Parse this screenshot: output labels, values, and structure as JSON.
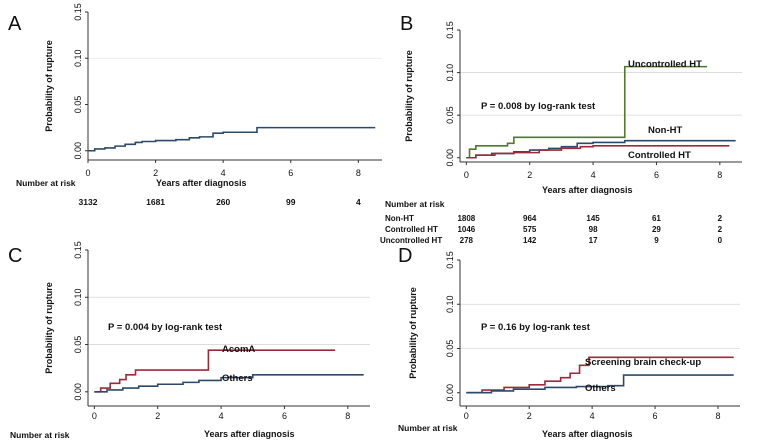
{
  "chart_data": [
    {
      "panel": "A",
      "type": "line",
      "xlabel": "Years after diagnosis",
      "ylabel": "Probability of rupture",
      "xlim": [
        0,
        8.7
      ],
      "ylim": [
        -0.01,
        0.15
      ],
      "xticks": [
        0,
        2,
        4,
        6,
        8
      ],
      "yticks": [
        "0.00",
        "0.05",
        "0.10",
        "0.15"
      ],
      "series": [
        {
          "color": "#2b4a6b",
          "x": [
            0,
            0.2,
            0.5,
            0.8,
            1.1,
            1.4,
            1.6,
            2.0,
            2.6,
            3.0,
            3.3,
            3.7,
            4.0,
            4.4,
            5.0,
            8.5
          ],
          "y": [
            0.0,
            0.002,
            0.003,
            0.005,
            0.007,
            0.009,
            0.01,
            0.011,
            0.012,
            0.014,
            0.015,
            0.019,
            0.02,
            0.02,
            0.025,
            0.025
          ]
        }
      ],
      "annotations": [],
      "risk_table": {
        "title": "Number at risk",
        "label_x": "Years after diagnosis",
        "rows": [
          {
            "label": "",
            "values": [
              "3132",
              "1681",
              "260",
              "99",
              "4"
            ]
          }
        ]
      }
    },
    {
      "panel": "B",
      "type": "line",
      "xlabel": "Years after diagnosis",
      "ylabel": "Probability of rupture",
      "xlim": [
        -0.2,
        8.7
      ],
      "ylim": [
        -0.005,
        0.15
      ],
      "xticks": [
        0,
        2,
        4,
        6,
        8
      ],
      "yticks": [
        "0.00",
        "0.05",
        "0.10",
        "0.15"
      ],
      "series": [
        {
          "name": "Uncontrolled HT",
          "color": "#4f7a2c",
          "x": [
            0,
            0.1,
            0.3,
            0.6,
            1.3,
            1.5,
            2.9,
            5.0,
            7.6
          ],
          "y": [
            0.0,
            0.01,
            0.014,
            0.014,
            0.017,
            0.024,
            0.024,
            0.107,
            0.107
          ]
        },
        {
          "name": "Non-HT",
          "color": "#2b4a6b",
          "x": [
            0,
            0.3,
            0.8,
            1.5,
            2.0,
            2.6,
            3.0,
            3.5,
            4.0,
            5.0,
            8.5
          ],
          "y": [
            0.0,
            0.003,
            0.005,
            0.007,
            0.009,
            0.011,
            0.013,
            0.017,
            0.018,
            0.02,
            0.02
          ]
        },
        {
          "name": "Controlled HT",
          "color": "#9c2a3a",
          "x": [
            0,
            0.3,
            0.9,
            1.5,
            2.3,
            3.0,
            3.6,
            4.0,
            8.3
          ],
          "y": [
            0.0,
            0.003,
            0.005,
            0.006,
            0.009,
            0.011,
            0.013,
            0.014,
            0.014
          ]
        }
      ],
      "annotations": [
        "P = 0.008 by log-rank test"
      ],
      "risk_table": {
        "title": "Number at risk",
        "label_x": "Years after diagnosis",
        "rows": [
          {
            "label": "Non-HT",
            "values": [
              "1808",
              "964",
              "145",
              "61",
              "2"
            ]
          },
          {
            "label": "Controlled  HT",
            "values": [
              "1046",
              "575",
              "98",
              "29",
              "2"
            ]
          },
          {
            "label": "Uncontrolled  HT",
            "values": [
              "278",
              "142",
              "17",
              "9",
              "0"
            ]
          }
        ]
      }
    },
    {
      "panel": "C",
      "type": "line",
      "xlabel": "Years after diagnosis",
      "ylabel": "Probability of rupture",
      "xlim": [
        -0.2,
        8.7
      ],
      "ylim": [
        -0.015,
        0.15
      ],
      "xticks": [
        0,
        2,
        4,
        6,
        8
      ],
      "yticks": [
        "0.00",
        "0.05",
        "0.10",
        "0.15"
      ],
      "series": [
        {
          "name": "AcomA",
          "color": "#9c2a3a",
          "x": [
            0,
            0.2,
            0.5,
            0.8,
            1.0,
            1.3,
            2.0,
            3.0,
            3.6,
            7.6
          ],
          "y": [
            0.0,
            0.004,
            0.009,
            0.013,
            0.018,
            0.023,
            0.023,
            0.023,
            0.044,
            0.044
          ]
        },
        {
          "name": "Others",
          "color": "#2b4a6b",
          "x": [
            0,
            0.4,
            0.9,
            1.4,
            2.0,
            2.8,
            3.3,
            4.0,
            5.0,
            8.5
          ],
          "y": [
            0.0,
            0.002,
            0.004,
            0.006,
            0.008,
            0.01,
            0.012,
            0.015,
            0.018,
            0.018
          ]
        }
      ],
      "annotations": [
        "P = 0.004 by log-rank test"
      ],
      "risk_table": {
        "title": "Number at risk",
        "label_x": "Years after diagnosis",
        "rows": []
      }
    },
    {
      "panel": "D",
      "type": "line",
      "xlabel": "Years after diagnosis",
      "ylabel": "Probability of rupture",
      "xlim": [
        -0.2,
        8.7
      ],
      "ylim": [
        -0.015,
        0.15
      ],
      "xticks": [
        0,
        2,
        4,
        6,
        8
      ],
      "yticks": [
        "0.00",
        "0.05",
        "0.10",
        "0.15"
      ],
      "series": [
        {
          "name": "Screening brain check-up",
          "color": "#9c2a3a",
          "x": [
            0,
            0.5,
            1.2,
            2.0,
            2.5,
            3.0,
            3.3,
            3.6,
            3.9,
            8.5
          ],
          "y": [
            0.0,
            0.003,
            0.006,
            0.009,
            0.013,
            0.017,
            0.022,
            0.031,
            0.04,
            0.04
          ]
        },
        {
          "name": "Others",
          "color": "#2b4a6b",
          "x": [
            0,
            0.8,
            1.5,
            2.5,
            3.5,
            4.5,
            5.0,
            8.5
          ],
          "y": [
            0.0,
            0.002,
            0.004,
            0.006,
            0.007,
            0.008,
            0.02,
            0.02
          ]
        }
      ],
      "annotations": [
        "P = 0.16 by log-rank test"
      ],
      "risk_table": {
        "title": "Number at risk",
        "label_x": "Years after diagnosis",
        "rows": []
      }
    }
  ]
}
